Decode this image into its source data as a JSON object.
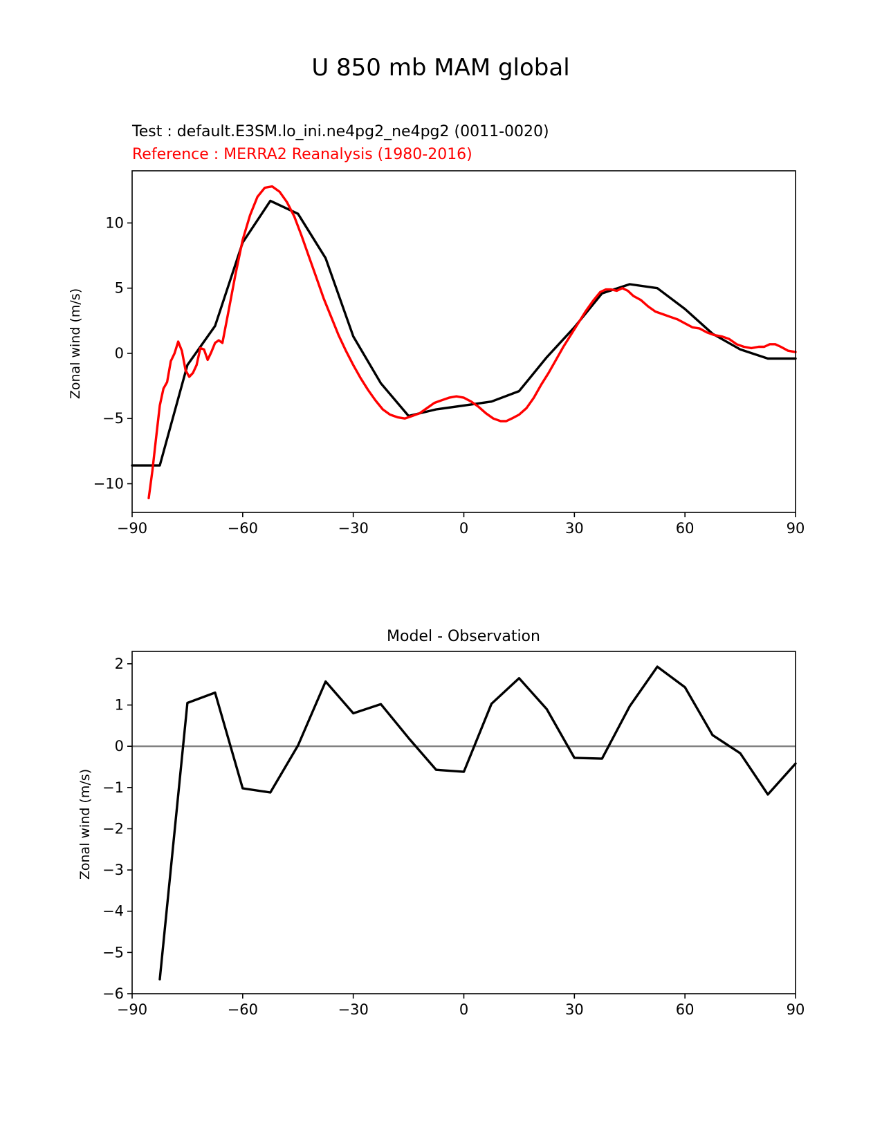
{
  "figure": {
    "suptitle": "U 850 mb MAM global"
  },
  "colors": {
    "test": "#000000",
    "reference": "#ff0000",
    "zero_line": "#808080"
  },
  "chart_data": [
    {
      "type": "line",
      "test_label": "Test : default.E3SM.lo_ini.ne4pg2_ne4pg2 (0011-0020)",
      "reference_label": "Reference : MERRA2 Reanalysis (1980-2016)",
      "xlabel": "",
      "ylabel": "Zonal wind (m/s)",
      "xlim": [
        -90,
        90
      ],
      "ylim": [
        -12.2,
        14
      ],
      "xticks": [
        -90,
        -60,
        -30,
        0,
        30,
        60,
        90
      ],
      "yticks": [
        -10,
        -5,
        0,
        5,
        10
      ],
      "series": [
        {
          "role": "test",
          "x": [
            -90,
            -82.5,
            -75,
            -67.5,
            -60,
            -52.5,
            -45,
            -37.5,
            -30,
            -22.5,
            -15,
            -7.5,
            0,
            7.5,
            15,
            22.5,
            30,
            37.5,
            45,
            52.5,
            60,
            67.5,
            75,
            82.5,
            90
          ],
          "values": [
            -8.6,
            -8.6,
            -0.9,
            2.1,
            8.5,
            11.7,
            10.7,
            7.3,
            1.3,
            -2.3,
            -4.8,
            -4.3,
            -4.0,
            -3.7,
            -2.9,
            -0.3,
            2.0,
            4.6,
            5.3,
            5.0,
            3.4,
            1.5,
            0.3,
            -0.4,
            -0.4
          ]
        },
        {
          "role": "reference",
          "x": [
            -85.5,
            -84.5,
            -83.5,
            -82.5,
            -81.5,
            -80.5,
            -79.5,
            -78.5,
            -77.5,
            -76.5,
            -75.5,
            -74.5,
            -73.5,
            -72.5,
            -71.5,
            -70.5,
            -69.5,
            -68.5,
            -67.5,
            -66.5,
            -65.5,
            -64,
            -62,
            -60,
            -58,
            -56,
            -54,
            -52,
            -50,
            -48,
            -46,
            -44,
            -42,
            -40,
            -38,
            -36,
            -34,
            -32,
            -30,
            -28,
            -26,
            -24,
            -22,
            -20,
            -18,
            -16,
            -15,
            -14,
            -12,
            -10,
            -8,
            -6,
            -4,
            -2,
            0,
            2,
            4,
            6,
            8,
            10,
            11.5,
            13,
            15,
            17,
            19,
            21,
            23,
            25,
            27,
            29,
            31,
            33,
            35,
            37,
            38.5,
            40,
            41.5,
            43,
            44.5,
            46,
            48,
            50,
            52,
            54,
            56,
            58,
            60,
            62,
            64,
            66,
            68,
            70,
            72,
            74,
            76,
            78,
            80,
            81.5,
            83,
            84.5,
            86,
            88,
            90
          ],
          "values": [
            -11.1,
            -9,
            -6.5,
            -4,
            -2.7,
            -2.2,
            -0.6,
            0,
            0.9,
            0.2,
            -1.3,
            -1.8,
            -1.5,
            -0.9,
            0.4,
            0.3,
            -0.5,
            0.1,
            0.8,
            1.0,
            0.8,
            3.0,
            6.0,
            8.7,
            10.6,
            12.0,
            12.7,
            12.8,
            12.4,
            11.6,
            10.5,
            9.0,
            7.4,
            5.8,
            4.2,
            2.8,
            1.4,
            0.2,
            -0.9,
            -1.9,
            -2.8,
            -3.6,
            -4.3,
            -4.7,
            -4.9,
            -5.0,
            -4.9,
            -4.8,
            -4.6,
            -4.2,
            -3.8,
            -3.6,
            -3.4,
            -3.3,
            -3.4,
            -3.7,
            -4.1,
            -4.6,
            -5.0,
            -5.2,
            -5.2,
            -5.0,
            -4.7,
            -4.2,
            -3.4,
            -2.4,
            -1.5,
            -0.5,
            0.5,
            1.4,
            2.3,
            3.2,
            4.0,
            4.7,
            4.9,
            4.9,
            4.8,
            5.0,
            4.8,
            4.4,
            4.1,
            3.6,
            3.2,
            3.0,
            2.8,
            2.6,
            2.3,
            2.0,
            1.9,
            1.6,
            1.4,
            1.3,
            1.1,
            0.7,
            0.5,
            0.4,
            0.5,
            0.5,
            0.7,
            0.7,
            0.5,
            0.2,
            0.1
          ]
        }
      ]
    },
    {
      "type": "line",
      "title": "Model - Observation",
      "xlabel": "",
      "ylabel": "Zonal wind (m/s)",
      "xlim": [
        -90,
        90
      ],
      "ylim": [
        -6,
        2.3
      ],
      "xticks": [
        -90,
        -60,
        -30,
        0,
        30,
        60,
        90
      ],
      "yticks": [
        -6,
        -5,
        -4,
        -3,
        -2,
        -1,
        0,
        1,
        2
      ],
      "zero_line": true,
      "series": [
        {
          "role": "difference",
          "x": [
            -82.5,
            -75,
            -67.5,
            -60,
            -52.5,
            -45,
            -37.5,
            -30,
            -22.5,
            -15,
            -7.5,
            0,
            7.5,
            15,
            22.5,
            30,
            37.5,
            45,
            52.5,
            60,
            67.5,
            75,
            82.5,
            90
          ],
          "values": [
            -5.65,
            1.05,
            1.3,
            -1.02,
            -1.12,
            0.02,
            1.57,
            0.8,
            1.02,
            0.2,
            -0.57,
            -0.62,
            1.03,
            1.65,
            0.9,
            -0.28,
            -0.3,
            0.97,
            1.93,
            1.43,
            0.27,
            -0.17,
            -1.17,
            -0.42
          ]
        }
      ]
    }
  ]
}
